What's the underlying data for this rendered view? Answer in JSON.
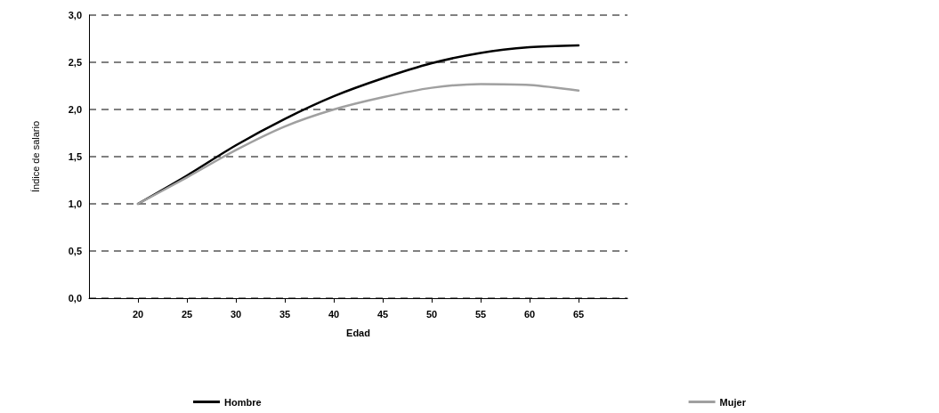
{
  "chart_data": {
    "type": "line",
    "xlabel": "Edad",
    "ylabel": "Índice de salario",
    "x": [
      20,
      25,
      30,
      35,
      40,
      45,
      50,
      55,
      60,
      65
    ],
    "series": [
      {
        "name": "Hombre",
        "color": "#000000",
        "values": [
          1.0,
          1.3,
          1.62,
          1.9,
          2.14,
          2.33,
          2.49,
          2.6,
          2.66,
          2.68
        ]
      },
      {
        "name": "Mujer",
        "color": "#a0a0a0",
        "values": [
          1.0,
          1.28,
          1.57,
          1.82,
          2.0,
          2.13,
          2.23,
          2.27,
          2.26,
          2.2
        ]
      }
    ],
    "xlim": [
      15,
      70
    ],
    "xticks": [
      20,
      25,
      30,
      35,
      40,
      45,
      50,
      55,
      60,
      65
    ],
    "ylim": [
      0,
      3
    ],
    "yticks": [
      {
        "value": 0,
        "label": "0,0"
      },
      {
        "value": 0.5,
        "label": "0,5"
      },
      {
        "value": 1,
        "label": "1,0"
      },
      {
        "value": 1.5,
        "label": "1,5"
      },
      {
        "value": 2,
        "label": "2,0"
      },
      {
        "value": 2.5,
        "label": "2,5"
      },
      {
        "value": 3,
        "label": "3,0"
      }
    ],
    "grid": "y",
    "legend": "bottom",
    "marker": "none",
    "line_style": "solid"
  }
}
